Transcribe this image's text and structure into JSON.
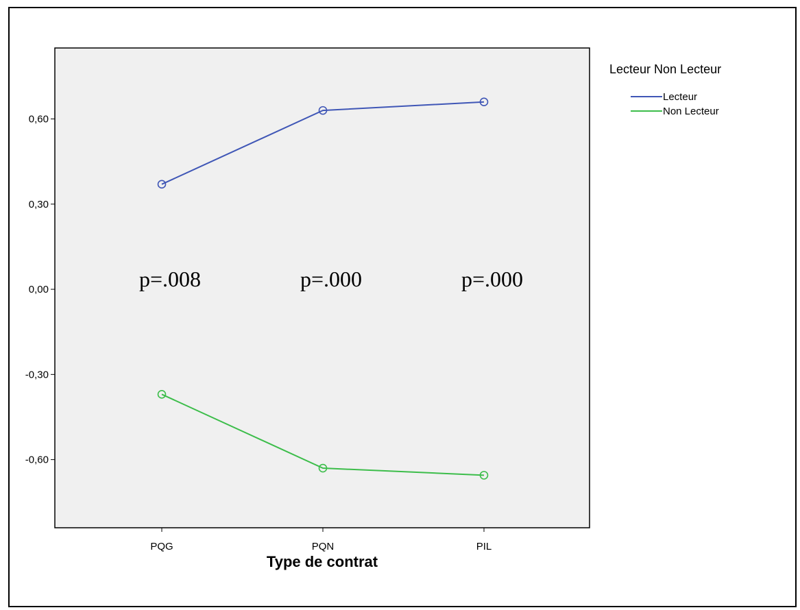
{
  "chart_data": {
    "type": "line",
    "categories": [
      "PQG",
      "PQN",
      "PIL"
    ],
    "xlabel": "Type de contrat",
    "ylabel": "",
    "ylim": [
      -0.84,
      0.85
    ],
    "yticks": [
      0.6,
      0.3,
      0.0,
      -0.3,
      -0.6
    ],
    "ytick_labels": [
      "0,60",
      "0,30",
      "0,00",
      "-0,30",
      "-0,60"
    ],
    "legend_title": "Lecteur Non Lecteur",
    "legend_position": "right",
    "series": [
      {
        "name": "Lecteur",
        "values": [
          0.37,
          0.63,
          0.66
        ],
        "color": "#3f56b6"
      },
      {
        "name": "Non Lecteur",
        "values": [
          -0.37,
          -0.63,
          -0.655
        ],
        "color": "#3cbd4a"
      }
    ],
    "annotations": [
      "p=.008",
      "p=.000",
      "p=.000"
    ],
    "plot_background": "#f0f0f0"
  }
}
